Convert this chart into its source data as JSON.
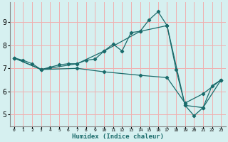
{
  "xlabel": "Humidex (Indice chaleur)",
  "background_color": "#d6f0f0",
  "grid_color": "#f0b0b0",
  "line_color": "#1a6b6b",
  "xlim": [
    -0.5,
    23.5
  ],
  "ylim": [
    4.5,
    9.85
  ],
  "xticks": [
    0,
    1,
    2,
    3,
    4,
    5,
    6,
    7,
    8,
    9,
    10,
    11,
    12,
    13,
    14,
    15,
    16,
    17,
    18,
    19,
    20,
    21,
    22,
    23
  ],
  "yticks": [
    5,
    6,
    7,
    8,
    9
  ],
  "series1_x": [
    0,
    1,
    2,
    3,
    4,
    5,
    6,
    7,
    8,
    9,
    10,
    11,
    12,
    13,
    14,
    15,
    16,
    17,
    18,
    19,
    20,
    21,
    22,
    23
  ],
  "series1_y": [
    7.45,
    7.35,
    7.2,
    6.95,
    7.05,
    7.15,
    7.2,
    7.2,
    7.35,
    7.4,
    7.75,
    8.05,
    7.75,
    8.55,
    8.6,
    9.1,
    9.45,
    8.85,
    6.95,
    5.4,
    4.95,
    5.3,
    6.25,
    6.5
  ],
  "series2_x": [
    0,
    3,
    7,
    10,
    14,
    17,
    19,
    21,
    23
  ],
  "series2_y": [
    7.45,
    6.95,
    7.2,
    7.75,
    8.6,
    8.85,
    5.4,
    5.3,
    6.5
  ],
  "series3_x": [
    0,
    3,
    7,
    10,
    14,
    17,
    19,
    21,
    23
  ],
  "series3_y": [
    7.45,
    6.95,
    7.0,
    6.85,
    6.7,
    6.6,
    5.5,
    5.9,
    6.5
  ]
}
